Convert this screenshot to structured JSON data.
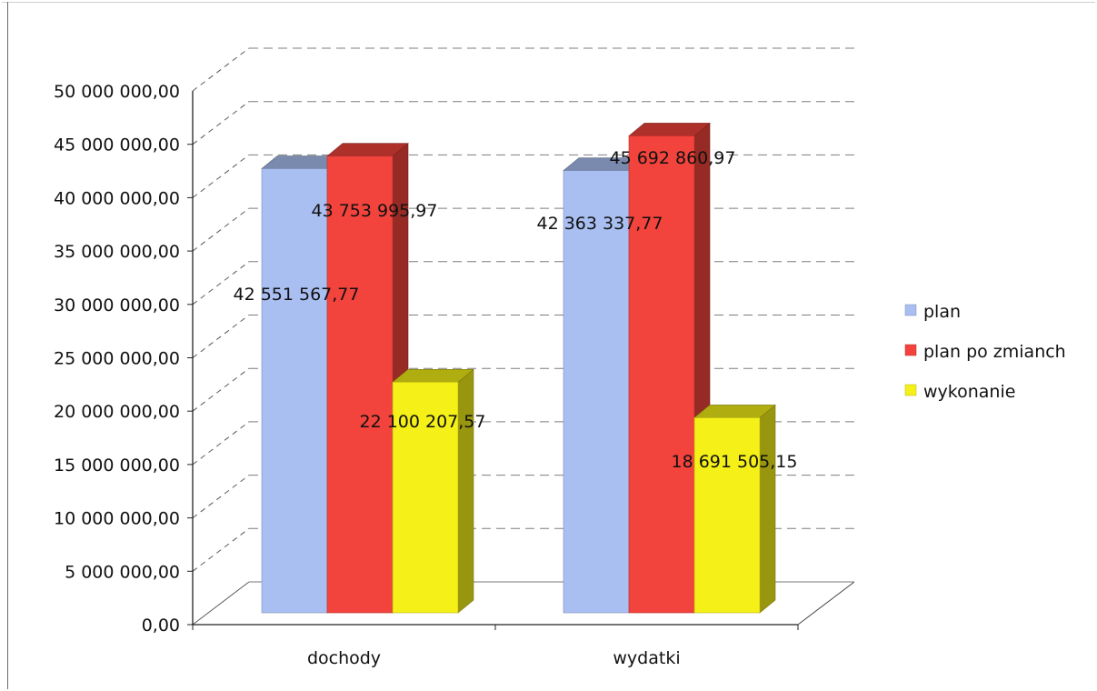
{
  "chart_data": {
    "type": "bar",
    "title": "",
    "xlabel": "",
    "ylabel": "",
    "categories": [
      "dochody",
      "wydatki"
    ],
    "series": [
      {
        "name": "plan",
        "values": [
          42551567.77,
          42363337.77
        ],
        "labels": [
          "42 551 567,77",
          "42 363 337,77"
        ],
        "color": "#a9bff2"
      },
      {
        "name": "plan po zmianch",
        "values": [
          43753995.97,
          45692860.97
        ],
        "labels": [
          "43 753 995,97",
          "45 692 860,97"
        ],
        "color": "#f2433c"
      },
      {
        "name": "wykonanie",
        "values": [
          22100207.57,
          18691505.15
        ],
        "labels": [
          "22 100 207,57",
          "18 691 505,15"
        ],
        "color": "#f5f018"
      }
    ],
    "ylim": [
      0,
      50000000
    ],
    "yticks": [
      0,
      5000000,
      10000000,
      15000000,
      20000000,
      25000000,
      30000000,
      35000000,
      40000000,
      45000000,
      50000000
    ],
    "ytick_labels": [
      "0,00",
      "5 000 000,00",
      "10 000 000,00",
      "15 000 000,00",
      "20 000 000,00",
      "25 000 000,00",
      "30 000 000,00",
      "35 000 000,00",
      "40 000 000,00",
      "45 000 000,00",
      "50 000 000,00"
    ],
    "grid": true,
    "legend_position": "right",
    "style": "3d-clustered-column"
  }
}
